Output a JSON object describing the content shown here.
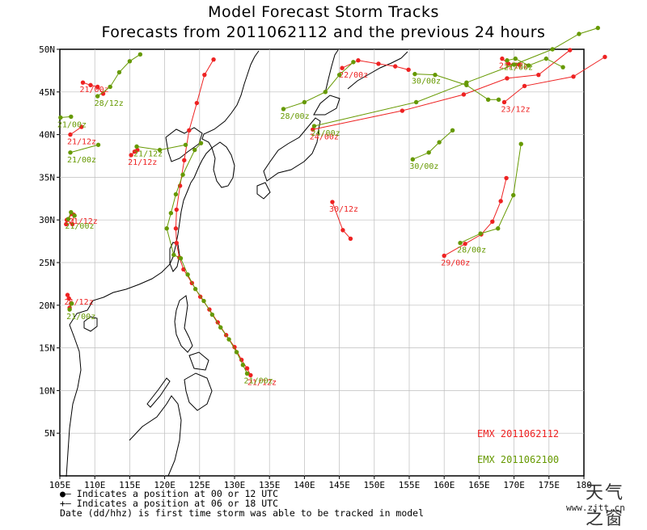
{
  "title": {
    "line1": "Model Forecast Storm Tracks",
    "line2": "Forecasts from 2011062112 and the previous 24 hours"
  },
  "map": {
    "lon_range": [
      105,
      180
    ],
    "lat_range": [
      0,
      50
    ],
    "lon_ticks": [
      "105E",
      "110E",
      "115E",
      "120E",
      "125E",
      "130E",
      "135E",
      "140E",
      "145E",
      "150E",
      "155E",
      "160E",
      "165E",
      "170E",
      "175E",
      "180"
    ],
    "lat_ticks": [
      "5N",
      "10N",
      "15N",
      "20N",
      "25N",
      "30N",
      "35N",
      "40N",
      "45N",
      "50N"
    ],
    "grid": true,
    "coastlines": true
  },
  "legend": {
    "series1": "EMX 2011062112",
    "series1_color": "#ee2222",
    "series2": "EMX 2011062100",
    "series2_color": "#669900"
  },
  "notes": {
    "line1": "●— Indicates a position at 00 or 12 UTC",
    "line2": "+— Indicates a position at 06 or 18 UTC",
    "line3": "Date (dd/hhz) is first time storm was able to be tracked in model"
  },
  "watermark": {
    "chars": "天气之窗",
    "url": "www.zjtt.cn"
  },
  "chart_data": {
    "type": "scatter",
    "xlabel": "",
    "ylabel": "",
    "xlim": [
      105,
      180
    ],
    "ylim": [
      0,
      50
    ],
    "series": [
      {
        "name": "EMX 2011062112",
        "color": "#ee2222",
        "tracks": [
          {
            "label": "21/12z",
            "points": [
              [
                132.3,
                11.8
              ],
              [
                131.8,
                12.6
              ],
              [
                131.0,
                13.6
              ],
              [
                130.0,
                15.1
              ],
              [
                128.8,
                16.5
              ],
              [
                127.6,
                18.0
              ],
              [
                126.4,
                19.5
              ],
              [
                125.1,
                21.0
              ],
              [
                123.9,
                22.6
              ],
              [
                122.7,
                24.2
              ],
              [
                122.1,
                25.6
              ],
              [
                121.7,
                27.3
              ],
              [
                121.6,
                29.0
              ],
              [
                121.7,
                31.2
              ],
              [
                122.2,
                34.0
              ],
              [
                122.8,
                37.0
              ],
              [
                123.5,
                40.5
              ],
              [
                124.6,
                43.7
              ],
              [
                125.7,
                47.0
              ],
              [
                127.0,
                48.8
              ]
            ]
          },
          {
            "label": "30/12z",
            "points": [
              [
                144.0,
                32.1
              ],
              [
                145.5,
                28.8
              ],
              [
                146.6,
                27.8
              ]
            ]
          },
          {
            "label": "29/00z",
            "points": [
              [
                160.0,
                25.8
              ],
              [
                163.0,
                27.2
              ],
              [
                165.3,
                28.3
              ],
              [
                166.9,
                29.8
              ],
              [
                168.1,
                32.2
              ],
              [
                168.9,
                34.9
              ]
            ]
          },
          {
            "label": "24/00z",
            "points": [
              [
                141.2,
                40.6
              ],
              [
                154.0,
                42.8
              ],
              [
                162.8,
                44.7
              ],
              [
                169.0,
                46.6
              ],
              [
                173.5,
                47.0
              ],
              [
                178.0,
                49.9
              ]
            ]
          },
          {
            "label": "23/12z",
            "points": [
              [
                168.6,
                43.8
              ],
              [
                171.5,
                45.7
              ],
              [
                178.5,
                46.8
              ],
              [
                183.0,
                49.1
              ]
            ]
          },
          {
            "label": "22/00z",
            "points": [
              [
                145.4,
                47.8
              ],
              [
                147.7,
                48.7
              ],
              [
                150.6,
                48.3
              ],
              [
                153.0,
                48.0
              ],
              [
                154.9,
                47.6
              ]
            ]
          },
          {
            "label": "21/12z",
            "points": [
              [
                168.3,
                48.9
              ],
              [
                169.2,
                48.3
              ],
              [
                170.7,
                48.2
              ]
            ]
          },
          {
            "label": "21/12z",
            "points": [
              [
                115.2,
                37.6
              ],
              [
                115.7,
                38.0
              ],
              [
                116.1,
                38.2
              ]
            ]
          },
          {
            "label": "21/00z",
            "points": [
              [
                108.3,
                46.1
              ],
              [
                109.4,
                45.8
              ],
              [
                110.4,
                45.6
              ],
              [
                111.2,
                44.8
              ]
            ]
          },
          {
            "label": "21/12z",
            "points": [
              [
                106.5,
                40.0
              ],
              [
                108.1,
                40.9
              ]
            ]
          },
          {
            "label": "21/12z",
            "points": [
              [
                106.7,
                30.7
              ],
              [
                106.2,
                30.1
              ],
              [
                105.9,
                29.5
              ],
              [
                106.0,
                30.0
              ],
              [
                106.8,
                29.5
              ],
              [
                107.0,
                30.6
              ]
            ]
          },
          {
            "label": "21/12z",
            "points": [
              [
                106.1,
                21.2
              ],
              [
                106.3,
                20.8
              ],
              [
                106.6,
                20.2
              ],
              [
                106.4,
                19.7
              ]
            ]
          }
        ]
      },
      {
        "name": "EMX 2011062100",
        "color": "#669900",
        "tracks": [
          {
            "label": "21/00z",
            "points": [
              [
                131.8,
                12.0
              ],
              [
                131.2,
                13.0
              ],
              [
                130.3,
                14.5
              ],
              [
                129.2,
                16.0
              ],
              [
                128.0,
                17.4
              ],
              [
                126.8,
                18.9
              ],
              [
                125.6,
                20.5
              ],
              [
                124.4,
                21.9
              ],
              [
                123.3,
                23.6
              ],
              [
                122.3,
                25.5
              ],
              [
                121.3,
                25.9
              ],
              [
                120.3,
                29.0
              ],
              [
                120.9,
                30.8
              ],
              [
                121.6,
                33.0
              ],
              [
                122.6,
                35.3
              ],
              [
                124.3,
                38.2
              ],
              [
                125.2,
                39.0
              ]
            ]
          },
          {
            "label": "30/00z",
            "points": [
              [
                155.5,
                37.1
              ],
              [
                157.8,
                37.9
              ],
              [
                159.3,
                39.1
              ],
              [
                161.2,
                40.5
              ]
            ]
          },
          {
            "label": "28/00z",
            "points": [
              [
                162.3,
                27.3
              ],
              [
                165.2,
                28.4
              ],
              [
                167.7,
                29.0
              ],
              [
                169.9,
                32.9
              ],
              [
                171.0,
                38.9
              ]
            ]
          },
          {
            "label": "28/00z",
            "points": [
              [
                137.0,
                43.0
              ],
              [
                140.0,
                43.8
              ],
              [
                143.0,
                45.0
              ],
              [
                145.0,
                47.0
              ],
              [
                147.0,
                48.5
              ]
            ]
          },
          {
            "label": "24/00z",
            "points": [
              [
                141.4,
                41.0
              ],
              [
                156.0,
                43.8
              ],
              [
                163.2,
                46.1
              ],
              [
                170.0,
                48.2
              ],
              [
                175.5,
                50.0
              ],
              [
                179.3,
                51.8
              ],
              [
                182.0,
                52.5
              ]
            ]
          },
          {
            "label": "30/00z",
            "points": [
              [
                155.8,
                47.1
              ],
              [
                158.7,
                47.0
              ],
              [
                163.2,
                45.8
              ],
              [
                166.3,
                44.1
              ],
              [
                167.8,
                44.1
              ]
            ]
          },
          {
            "label": "21/00z",
            "points": [
              [
                169.0,
                48.7
              ],
              [
                170.2,
                48.9
              ],
              [
                172.1,
                48.1
              ],
              [
                174.6,
                48.9
              ],
              [
                177.0,
                47.9
              ]
            ]
          },
          {
            "label": "21/12z",
            "points": [
              [
                116.0,
                38.6
              ],
              [
                119.3,
                38.2
              ],
              [
                123.0,
                38.8
              ]
            ]
          },
          {
            "label": "28/12z",
            "points": [
              [
                110.4,
                44.5
              ],
              [
                112.2,
                45.6
              ],
              [
                113.5,
                47.3
              ],
              [
                115.0,
                48.6
              ],
              [
                116.5,
                49.4
              ]
            ]
          },
          {
            "label": "21/00z",
            "points": [
              [
                105.1,
                42.0
              ],
              [
                106.6,
                42.1
              ]
            ]
          },
          {
            "label": "21/00z",
            "points": [
              [
                106.5,
                37.9
              ],
              [
                110.5,
                38.8
              ]
            ]
          },
          {
            "label": "21/00z",
            "points": [
              [
                106.2,
                30.1
              ],
              [
                106.6,
                30.9
              ],
              [
                107.1,
                30.5
              ]
            ]
          },
          {
            "label": "21/00z",
            "points": [
              [
                106.4,
                19.5
              ],
              [
                106.7,
                20.2
              ]
            ]
          }
        ]
      }
    ]
  }
}
